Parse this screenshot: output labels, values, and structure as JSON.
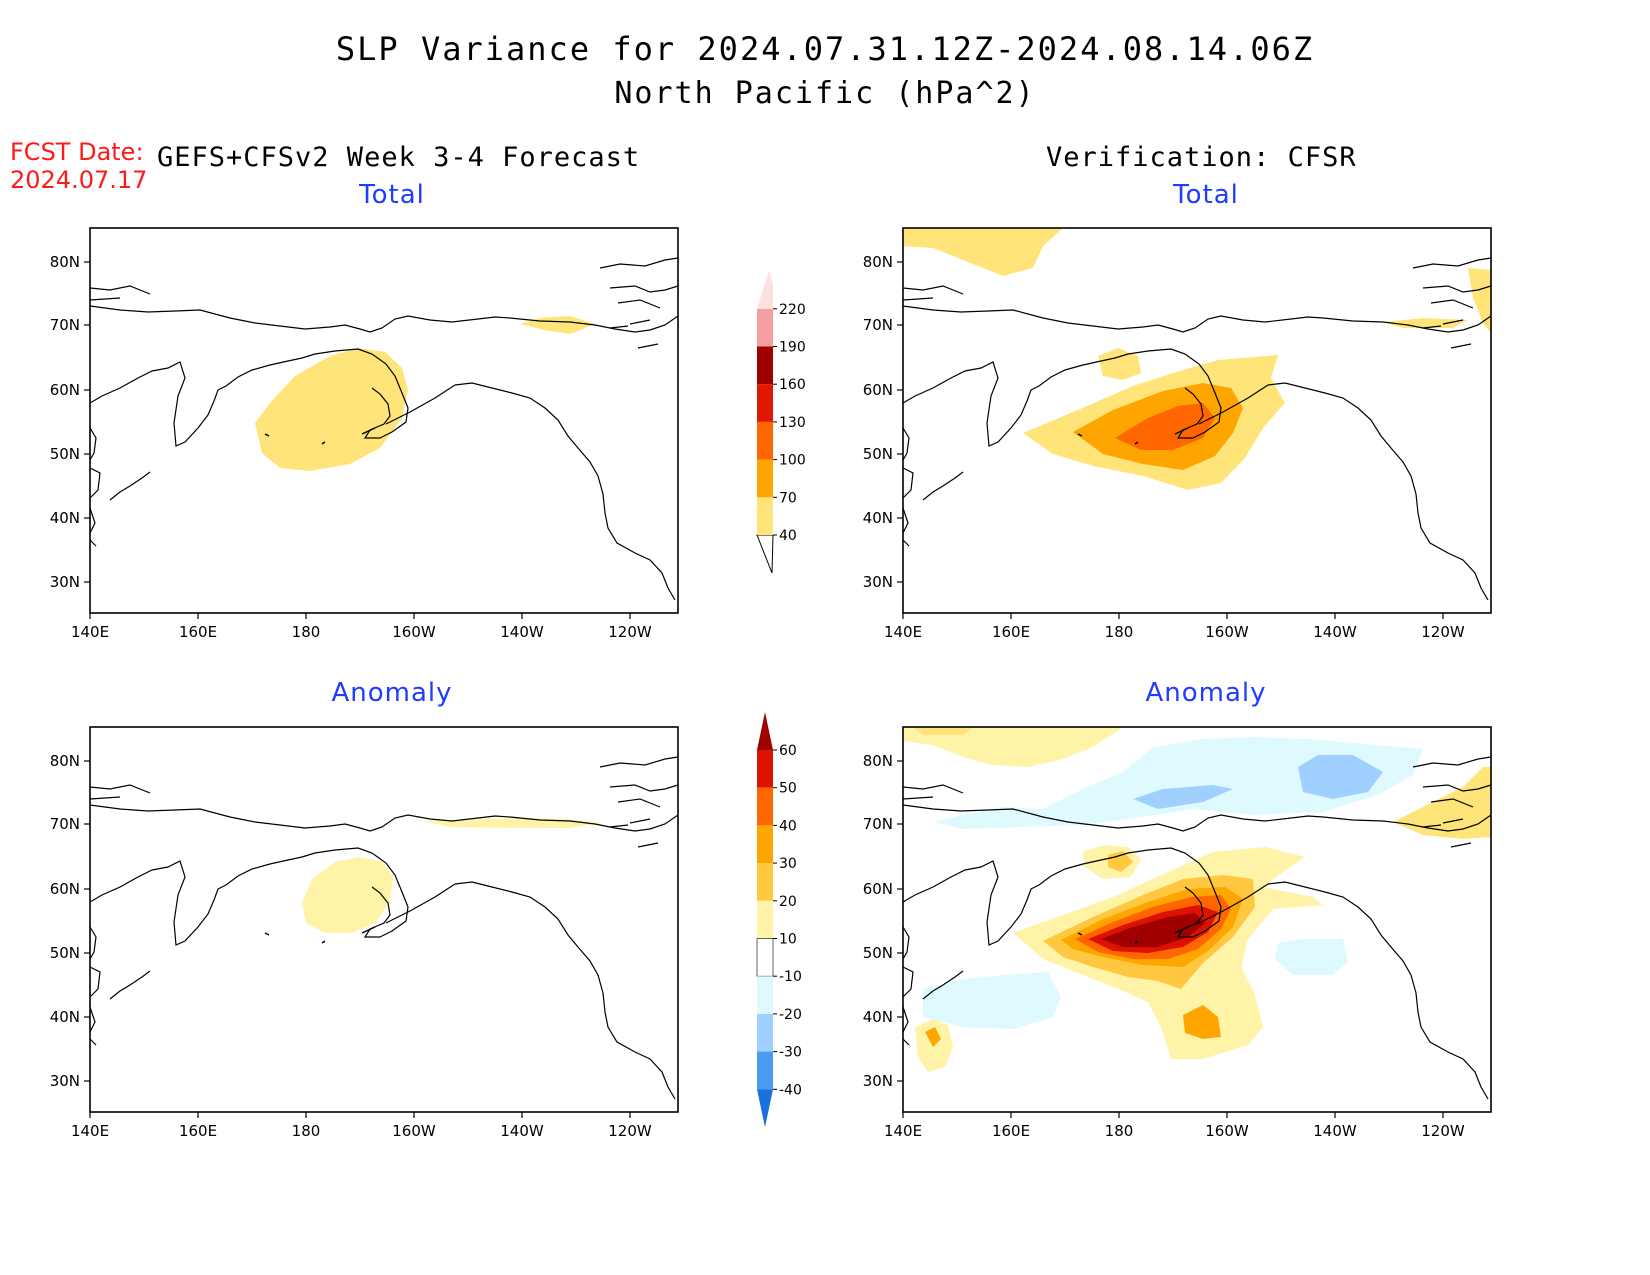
{
  "title": "SLP Variance for 2024.07.31.12Z-2024.08.14.06Z",
  "subtitle": "North Pacific (hPa^2)",
  "fcst_label": "FCST Date:",
  "fcst_date": "2024.07.17",
  "left_header": "GEFS+CFSv2 Week 3-4 Forecast",
  "right_header": "Verification: CFSR",
  "panels": {
    "top_left": {
      "title": "Total"
    },
    "top_right": {
      "title": "Total"
    },
    "bottom_left": {
      "title": "Anomaly"
    },
    "bottom_right": {
      "title": "Anomaly"
    }
  },
  "axes": {
    "lon_labels": [
      "140E",
      "160E",
      "180",
      "160W",
      "140W",
      "120W"
    ],
    "lat_labels": [
      "80N",
      "70N",
      "60N",
      "50N",
      "40N",
      "30N"
    ]
  },
  "colorbar_total": {
    "levels": [
      "40",
      "70",
      "100",
      "130",
      "160",
      "190",
      "220"
    ],
    "colors": [
      "#ffe47a",
      "#ffa500",
      "#ff6600",
      "#e01800",
      "#a00000",
      "#f4a0a0",
      "#fde0e0"
    ]
  },
  "colorbar_anomaly": {
    "levels": [
      "60",
      "50",
      "40",
      "30",
      "20",
      "10",
      "-10",
      "-20",
      "-30",
      "-40"
    ],
    "colors_top_down": [
      "#a00000",
      "#dd1100",
      "#ff6600",
      "#ffa500",
      "#ffc840",
      "#fff3a8",
      "#ffffff",
      "#dffaff",
      "#a0d0ff",
      "#4a9cf0",
      "#1a70e0"
    ]
  },
  "map_colors": {
    "pale_yellow": "#fff3a8",
    "yellow": "#ffe47a",
    "light_orange": "#ffc840",
    "orange": "#ffa500",
    "dark_orange": "#ff6600",
    "red": "#e01800",
    "dark_red": "#a00000",
    "light_cyan": "#dffaff",
    "light_blue": "#a0d0ff"
  }
}
